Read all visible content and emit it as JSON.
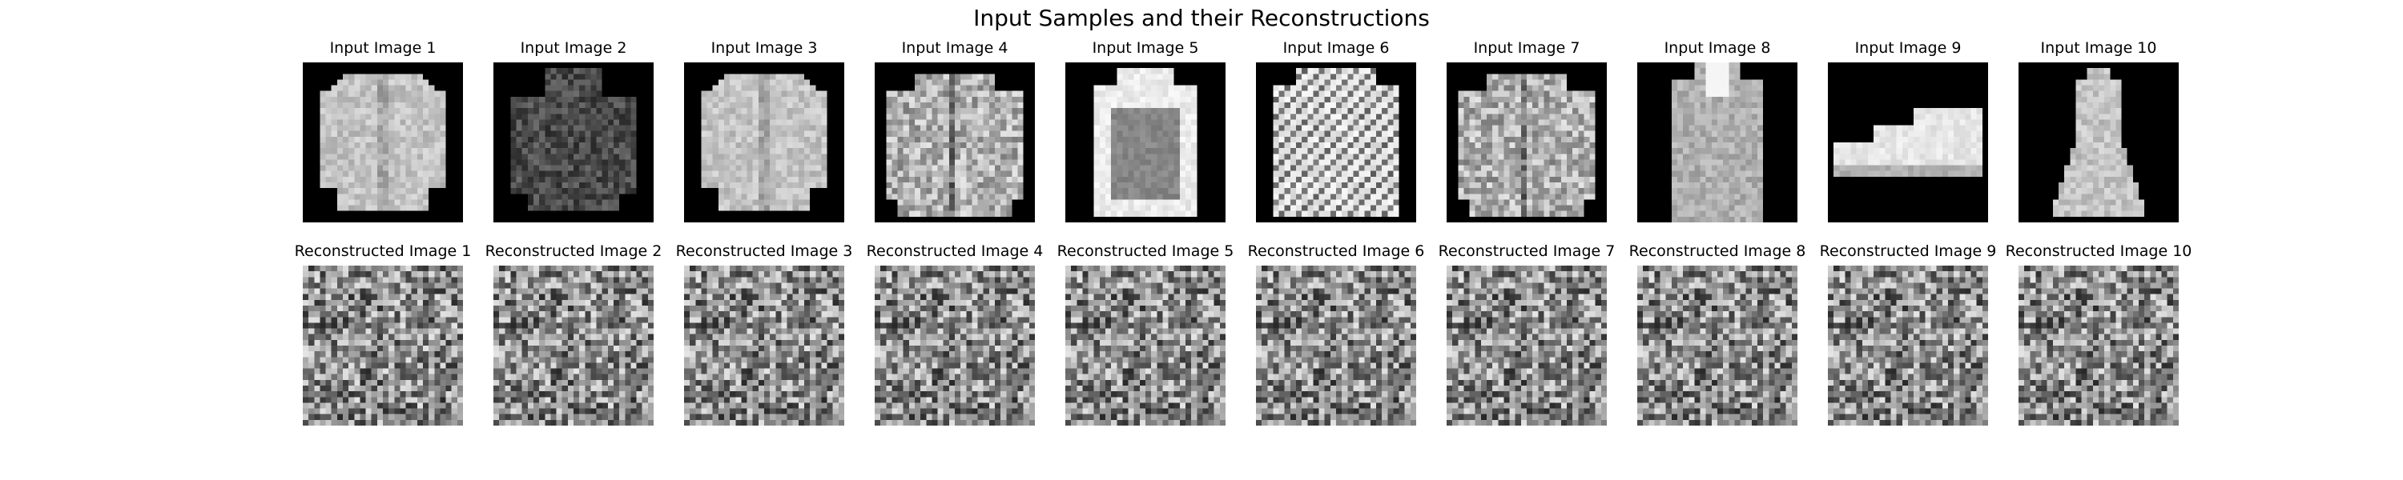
{
  "figure": {
    "title": "Input Samples and their Reconstructions"
  },
  "input_row": [
    {
      "label": "Input Image 1",
      "item": "shirt"
    },
    {
      "label": "Input Image 2",
      "item": "hoodie"
    },
    {
      "label": "Input Image 3",
      "item": "shirt"
    },
    {
      "label": "Input Image 4",
      "item": "jacket"
    },
    {
      "label": "Input Image 5",
      "item": "pullover"
    },
    {
      "label": "Input Image 6",
      "item": "patterned-pullover"
    },
    {
      "label": "Input Image 7",
      "item": "jacket"
    },
    {
      "label": "Input Image 8",
      "item": "coat"
    },
    {
      "label": "Input Image 9",
      "item": "sneaker"
    },
    {
      "label": "Input Image 10",
      "item": "dress"
    }
  ],
  "reconstruction_row": [
    {
      "label": "Reconstructed Image 1"
    },
    {
      "label": "Reconstructed Image 2"
    },
    {
      "label": "Reconstructed Image 3"
    },
    {
      "label": "Reconstructed Image 4"
    },
    {
      "label": "Reconstructed Image 5"
    },
    {
      "label": "Reconstructed Image 6"
    },
    {
      "label": "Reconstructed Image 7"
    },
    {
      "label": "Reconstructed Image 8"
    },
    {
      "label": "Reconstructed Image 9"
    },
    {
      "label": "Reconstructed Image 10"
    }
  ],
  "colors": {
    "background": "#ffffff",
    "image_background": "#000000",
    "text": "#000000"
  }
}
